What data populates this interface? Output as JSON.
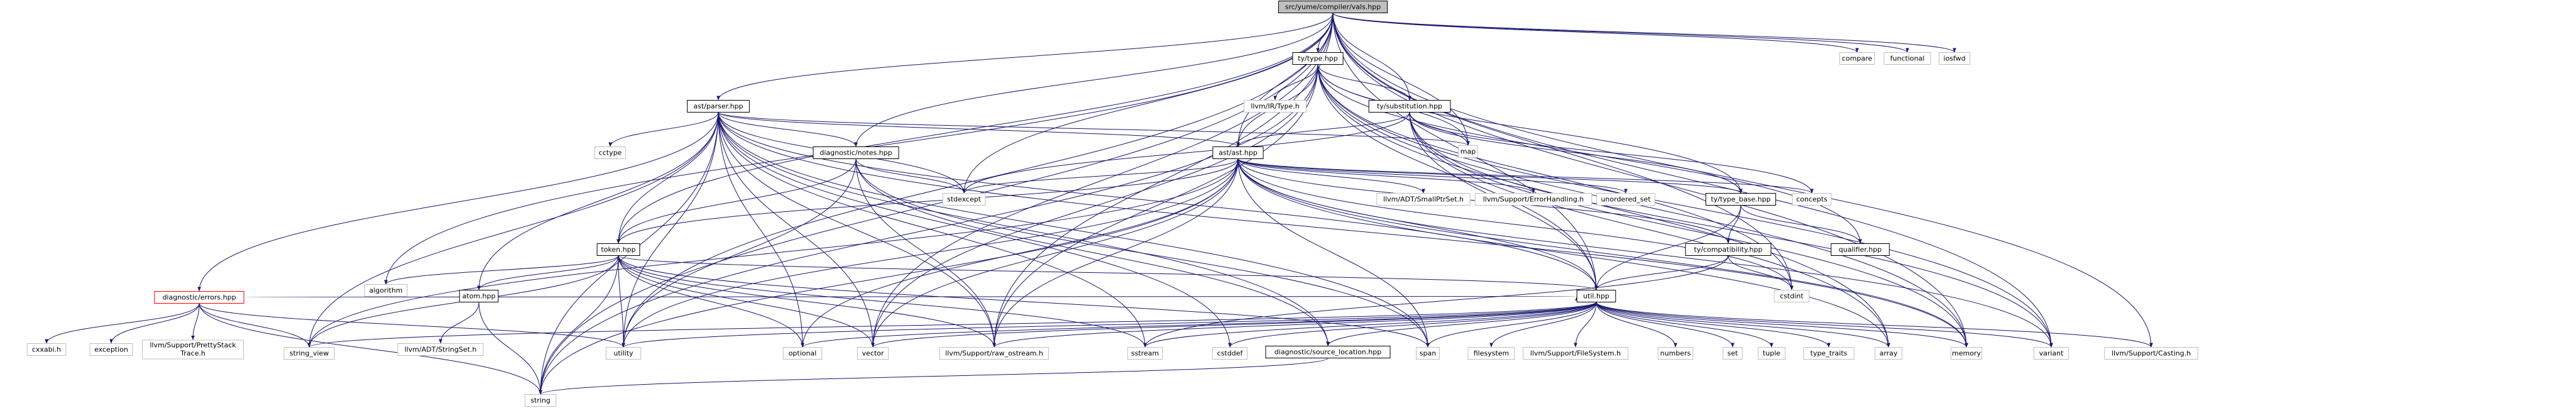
{
  "nodes": [
    "src/yume/compiler/vals.hpp",
    "ty/type.hpp",
    "compare",
    "functional",
    "iosfwd",
    "ast/parser.hpp",
    "llvm/IR/Type.h",
    "ty/substitution.hpp",
    "map",
    "diagnostic/notes.hpp",
    "cctype",
    "ast/ast.hpp",
    "stdexcept",
    "llvm/ADT/SmallPtrSet.h",
    "llvm/Support/ErrorHandling.h",
    "unordered_set",
    "ty/type_base.hpp",
    "concepts",
    "token.hpp",
    "ty/compatibility.hpp",
    "qualifier.hpp",
    "diagnostic/errors.hpp",
    "atom.hpp",
    "algorithm",
    "util.hpp",
    "cstdint",
    "cxxabi.h",
    "exception",
    [
      "llvm/Support/PrettyStack",
      "Trace.h"
    ],
    "string_view",
    "llvm/ADT/StringSet.h",
    "utility",
    "optional",
    "vector",
    "llvm/Support/raw_ostream.h",
    "sstream",
    "cstddef",
    "diagnostic/source_location.hpp",
    "span",
    "filesystem",
    "llvm/Support/FileSystem.h",
    "numbers",
    "set",
    "tuple",
    "type_traits",
    "array",
    "memory",
    "variant",
    "llvm/Support/Casting.h",
    "string"
  ]
}
